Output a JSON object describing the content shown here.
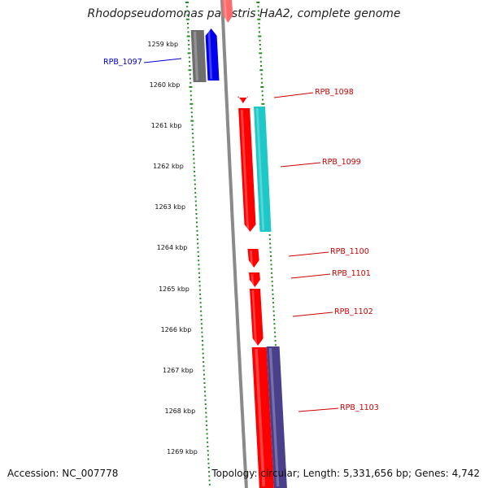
{
  "title": "Rhodopseudomonas palustris HaA2, complete genome",
  "footer": {
    "accession": "Accession: NC_007778",
    "summary": "Topology: circular; Length: 5,331,656 bp; Genes: 4,742"
  },
  "colors": {
    "backbone": "#8a8a8a",
    "ticks": "#228b22",
    "label_red": "#cc0000",
    "label_blue": "#0000cc",
    "red_gene": "#ff0000",
    "blue_gene": "#0000ee",
    "gray_gene": "#6e6e6e",
    "cyan_gene": "#1ec8c8",
    "purple_gene": "#4a3f8a"
  },
  "kbp_labels": [
    "1259 kbp",
    "1260 kbp",
    "1261 kbp",
    "1262 kbp",
    "1263 kbp",
    "1264 kbp",
    "1265 kbp",
    "1266 kbp",
    "1267 kbp",
    "1268 kbp",
    "1269 kbp"
  ],
  "gene_labels": [
    {
      "text": "RPB_1097",
      "color": "blue"
    },
    {
      "text": "RPB_1098",
      "color": "red"
    },
    {
      "text": "RPB_1099",
      "color": "red"
    },
    {
      "text": "RPB_1100",
      "color": "red"
    },
    {
      "text": "RPB_1101",
      "color": "red"
    },
    {
      "text": "RPB_1102",
      "color": "red"
    },
    {
      "text": "RPB_1103",
      "color": "red"
    }
  ]
}
